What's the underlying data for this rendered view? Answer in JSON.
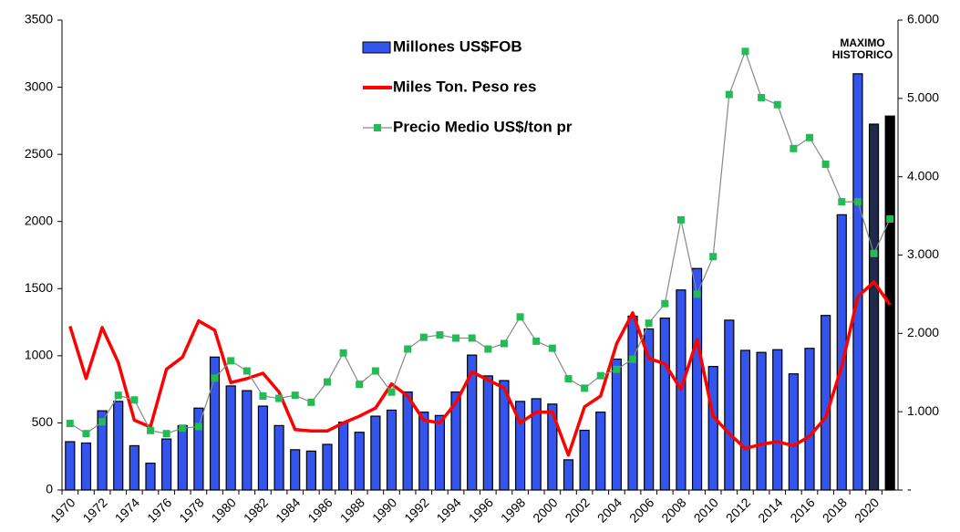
{
  "chart_data": {
    "type": "bar_line",
    "categories": [
      "1970",
      null,
      "1972",
      null,
      "1974",
      null,
      "1976",
      null,
      "1978",
      null,
      "1980",
      null,
      "1982",
      null,
      "1984",
      null,
      "1986",
      null,
      "1988",
      null,
      "1990",
      null,
      "1992",
      null,
      "1994",
      null,
      "1996",
      null,
      "1998",
      null,
      "2000",
      null,
      "2002",
      null,
      "2004",
      null,
      "2006",
      null,
      "2008",
      null,
      "2010",
      null,
      "2012",
      null,
      "2014",
      null,
      "2016",
      null,
      "2018",
      null,
      "2020",
      null
    ],
    "series": [
      {
        "name": "Millones US$FOB",
        "type": "bar",
        "axis": "y",
        "color": "#3355ee",
        "colors": [
          "#3355ee",
          "#3355ee",
          "#3355ee",
          "#3355ee",
          "#3355ee",
          "#3355ee",
          "#3355ee",
          "#3355ee",
          "#3355ee",
          "#3355ee",
          "#3355ee",
          "#3355ee",
          "#3355ee",
          "#3355ee",
          "#3355ee",
          "#3355ee",
          "#3355ee",
          "#3355ee",
          "#3355ee",
          "#3355ee",
          "#3355ee",
          "#3355ee",
          "#3355ee",
          "#3355ee",
          "#3355ee",
          "#3355ee",
          "#3355ee",
          "#3355ee",
          "#3355ee",
          "#3355ee",
          "#3355ee",
          "#3355ee",
          "#3355ee",
          "#3355ee",
          "#3355ee",
          "#3355ee",
          "#3355ee",
          "#3355ee",
          "#3355ee",
          "#3355ee",
          "#3355ee",
          "#3355ee",
          "#3355ee",
          "#3355ee",
          "#3355ee",
          "#3355ee",
          "#3355ee",
          "#3355ee",
          "#3355ee",
          "#3355ee",
          "#1f2a4a",
          "#000000"
        ],
        "values": [
          360,
          350,
          590,
          660,
          330,
          200,
          380,
          480,
          610,
          990,
          775,
          740,
          625,
          480,
          300,
          290,
          340,
          505,
          430,
          550,
          595,
          730,
          580,
          555,
          730,
          1005,
          850,
          815,
          660,
          680,
          640,
          225,
          445,
          580,
          975,
          1295,
          1200,
          1280,
          1490,
          1650,
          920,
          1265,
          1040,
          1025,
          1045,
          865,
          1055,
          1300,
          2050,
          3100,
          2725,
          2785
        ]
      },
      {
        "name": "Miles Ton. Peso res",
        "type": "line",
        "axis": "y",
        "color": "#ff0000",
        "values": [
          1220,
          830,
          1210,
          950,
          520,
          470,
          900,
          990,
          1260,
          1190,
          800,
          830,
          870,
          730,
          450,
          440,
          440,
          500,
          550,
          610,
          790,
          700,
          520,
          500,
          650,
          880,
          820,
          760,
          500,
          580,
          580,
          260,
          620,
          700,
          1090,
          1320,
          980,
          940,
          750,
          1120,
          550,
          420,
          310,
          340,
          360,
          330,
          400,
          540,
          920,
          1440,
          1550,
          1380
        ]
      },
      {
        "name": "Precio Medio US$/ton pr",
        "type": "line_marker",
        "axis": "y2",
        "color": "#888888",
        "marker_color": "#22bb55",
        "values": [
          850,
          720,
          870,
          1210,
          1150,
          760,
          720,
          790,
          810,
          1430,
          1650,
          1520,
          1200,
          1170,
          1210,
          1120,
          1380,
          1750,
          1350,
          1520,
          1250,
          1800,
          1950,
          1980,
          1940,
          1940,
          1800,
          1870,
          2210,
          1900,
          1810,
          1420,
          1300,
          1460,
          1540,
          1670,
          2130,
          2380,
          3450,
          2500,
          2980,
          5050,
          5600,
          5010,
          4920,
          4360,
          4500,
          4160,
          3680,
          3680,
          3020,
          3460
        ]
      }
    ],
    "ylim": [
      0,
      3500
    ],
    "yticks": [
      0,
      500,
      1000,
      1500,
      2000,
      2500,
      3000,
      3500
    ],
    "y2lim": [
      0,
      6000
    ],
    "y2ticks": [
      {
        "value": 0,
        "label": "-"
      },
      {
        "value": 1000,
        "label": "1.000"
      },
      {
        "value": 2000,
        "label": "2.000"
      },
      {
        "value": 3000,
        "label": "3.000"
      },
      {
        "value": 4000,
        "label": "4.000"
      },
      {
        "value": 5000,
        "label": "5.000"
      },
      {
        "value": 6000,
        "label": "6.000"
      }
    ],
    "annotation": [
      "MAXIMO",
      "HISTORICO"
    ],
    "legend": "top-center"
  }
}
